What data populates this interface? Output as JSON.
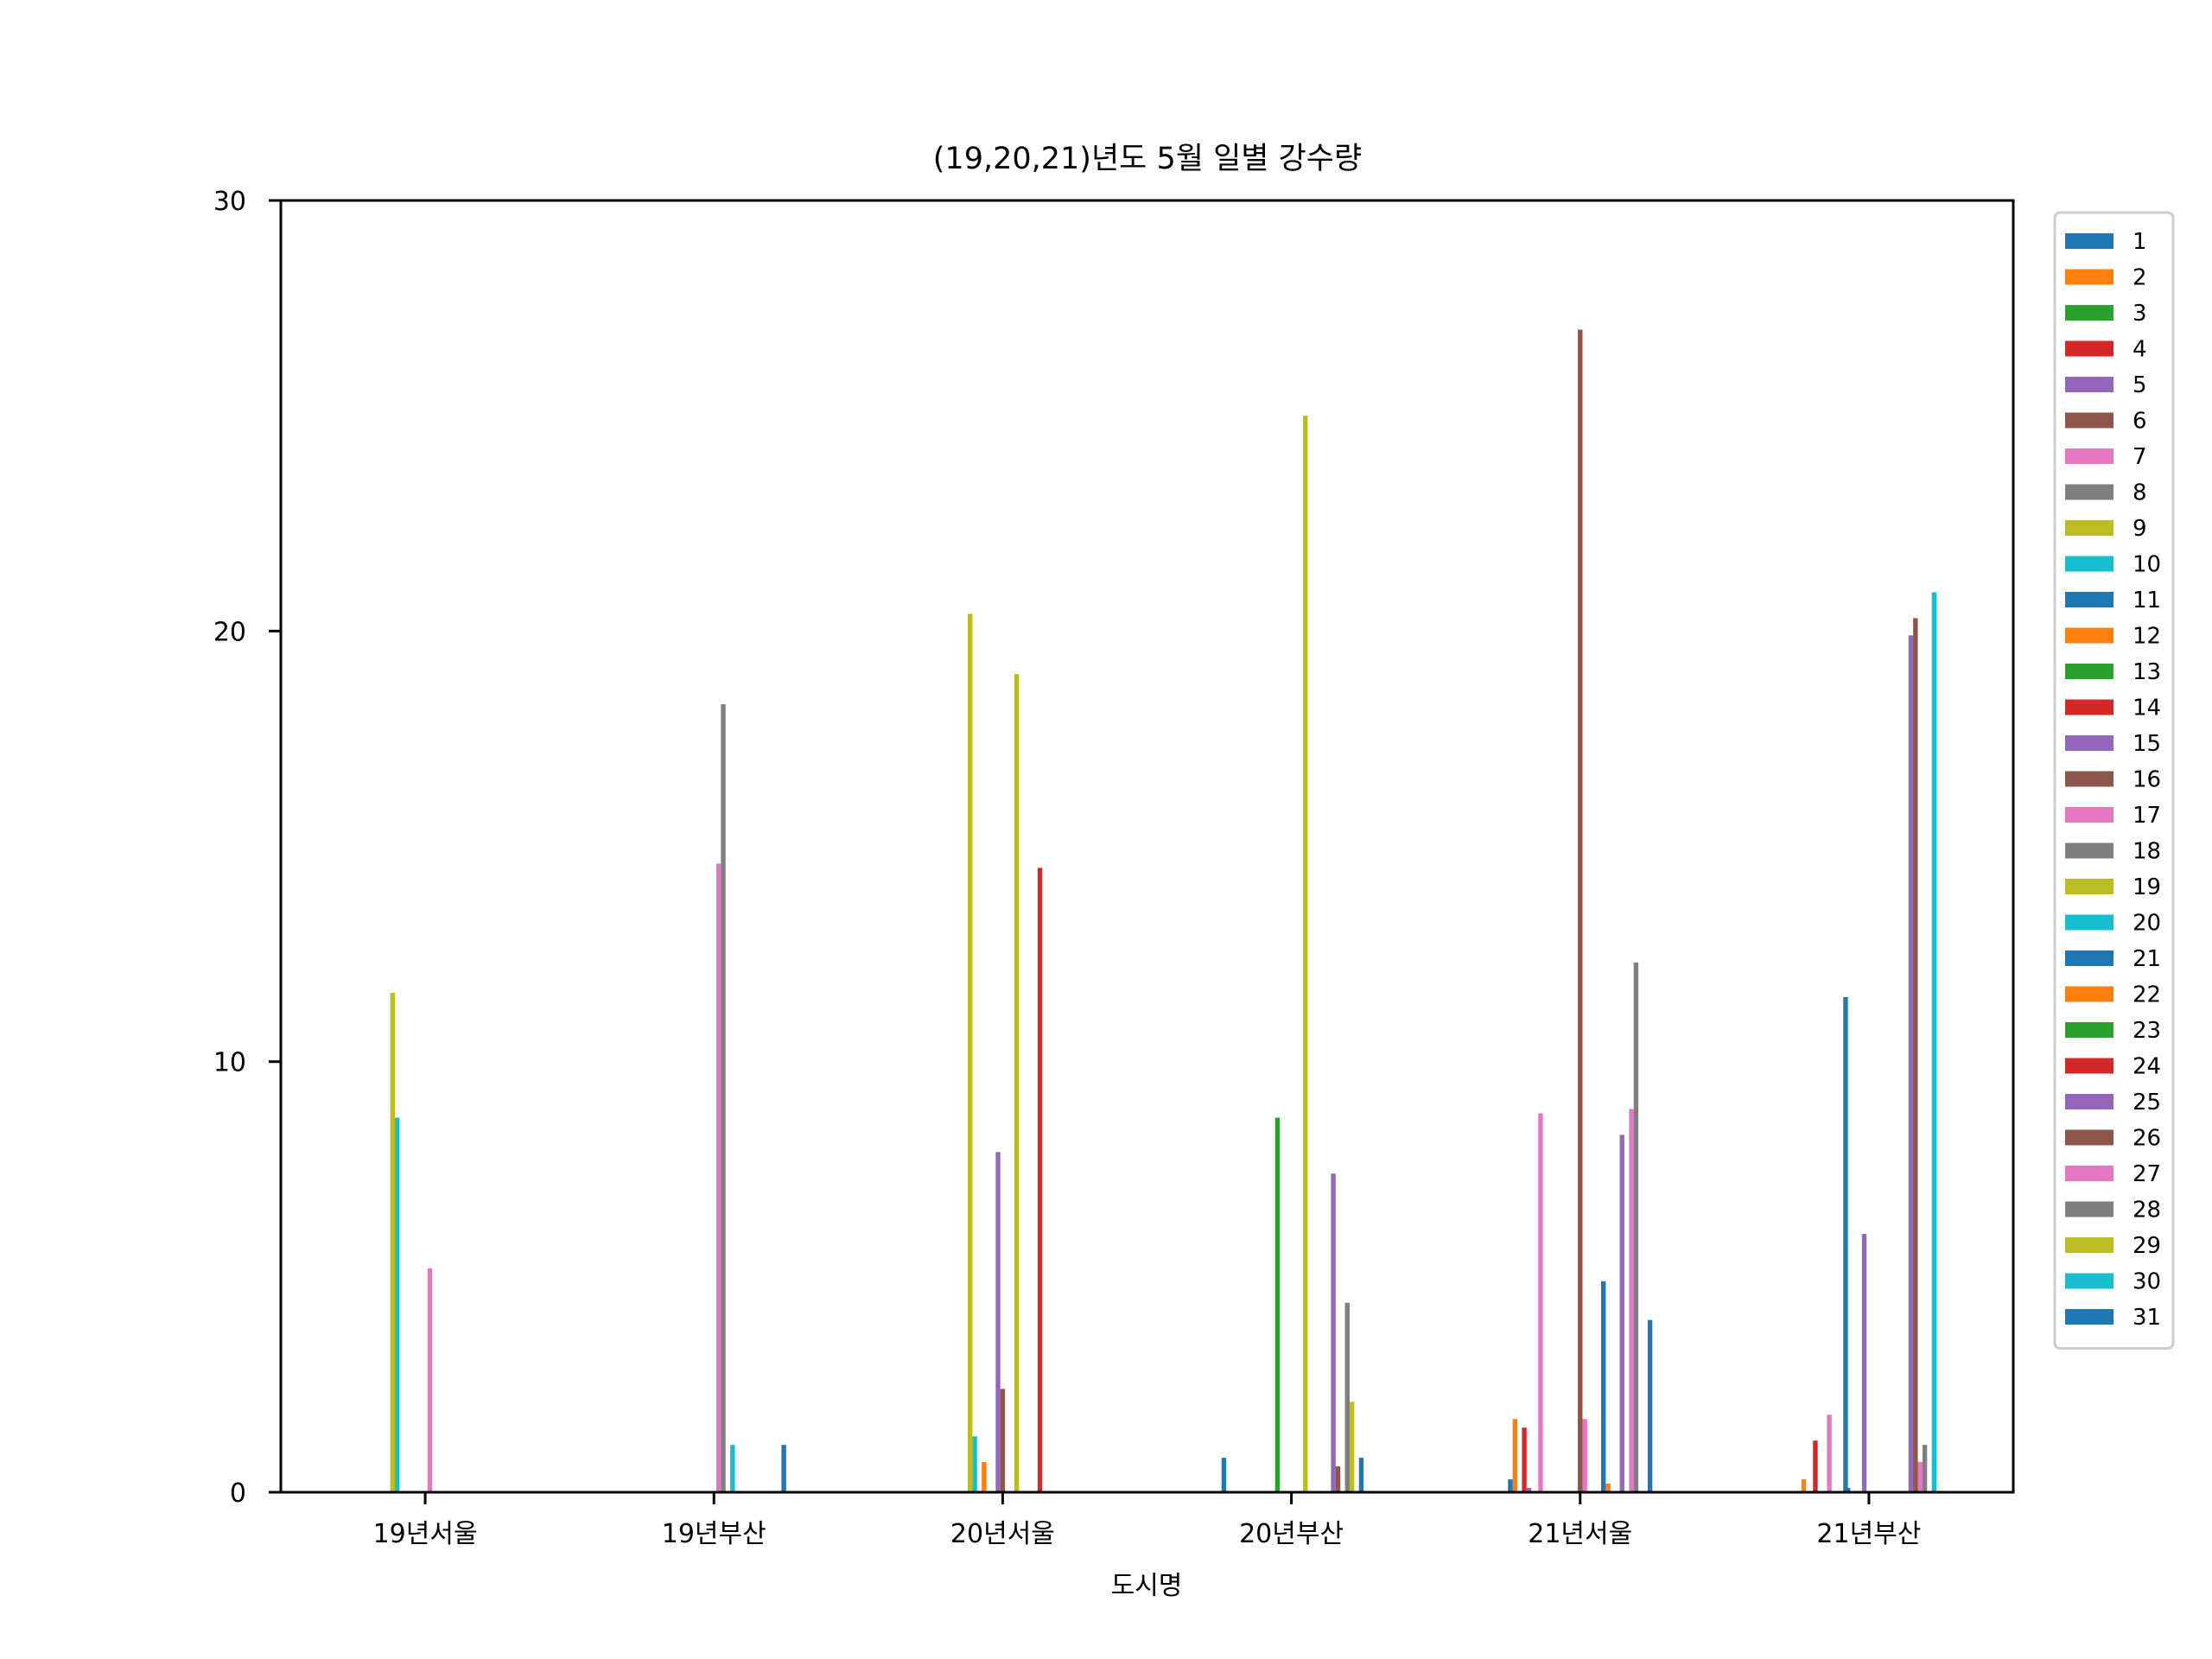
{
  "chart_data": {
    "type": "bar",
    "title": "(19,20,21)년도 5월 일별 강수량",
    "xlabel": "도시명",
    "ylabel": "",
    "ylim": [
      0,
      30
    ],
    "yticks": [
      0,
      10,
      20,
      30
    ],
    "categories": [
      "19년서울",
      "19년부산",
      "20년서울",
      "20년부산",
      "21년서울",
      "21년부산"
    ],
    "legend_position": "outside-right",
    "grid": false,
    "palette": [
      "#1f77b4",
      "#ff7f0e",
      "#2ca02c",
      "#d62728",
      "#9467bd",
      "#8c564b",
      "#e377c2",
      "#7f7f7f",
      "#bcbd22",
      "#17becf"
    ],
    "series": [
      {
        "name": "1",
        "values": [
          0,
          0,
          0,
          0,
          0.3,
          0
        ]
      },
      {
        "name": "2",
        "values": [
          0,
          0,
          0,
          0,
          1.7,
          0.3
        ]
      },
      {
        "name": "3",
        "values": [
          0,
          0,
          0,
          0,
          0,
          0
        ]
      },
      {
        "name": "4",
        "values": [
          0,
          0,
          0,
          0,
          1.5,
          0
        ]
      },
      {
        "name": "5",
        "values": [
          0,
          0,
          0,
          0,
          0.1,
          0
        ]
      },
      {
        "name": "6",
        "values": [
          0,
          0,
          0,
          0,
          0,
          0
        ]
      },
      {
        "name": "7",
        "values": [
          0,
          0,
          0,
          0,
          0,
          0
        ]
      },
      {
        "name": "8",
        "values": [
          0,
          0,
          0,
          0,
          0,
          0
        ]
      },
      {
        "name": "9",
        "values": [
          11.6,
          0,
          20.4,
          0,
          0,
          0
        ]
      },
      {
        "name": "10",
        "values": [
          8.7,
          0,
          1.3,
          0,
          0,
          0
        ]
      },
      {
        "name": "11",
        "values": [
          0,
          0,
          0,
          0,
          0,
          11.5
        ]
      },
      {
        "name": "12",
        "values": [
          0,
          0,
          0.7,
          0,
          0,
          0
        ]
      },
      {
        "name": "13",
        "values": [
          0,
          0,
          0,
          8.7,
          0,
          0
        ]
      },
      {
        "name": "14",
        "values": [
          0,
          0,
          0,
          0,
          0,
          0
        ]
      },
      {
        "name": "15",
        "values": [
          0,
          0,
          7.9,
          0,
          0,
          6.0
        ]
      },
      {
        "name": "16",
        "values": [
          0,
          0,
          2.4,
          0,
          27.0,
          0
        ]
      },
      {
        "name": "17",
        "values": [
          5.2,
          14.6,
          0,
          0,
          1.7,
          0
        ]
      },
      {
        "name": "18",
        "values": [
          0,
          18.3,
          0,
          0,
          0,
          0
        ]
      },
      {
        "name": "19",
        "values": [
          0,
          0,
          19.0,
          25.0,
          0,
          0
        ]
      },
      {
        "name": "20",
        "values": [
          0,
          1.1,
          0,
          0,
          0,
          0
        ]
      },
      {
        "name": "21",
        "values": [
          0,
          0,
          0,
          0,
          4.9,
          0
        ]
      },
      {
        "name": "22",
        "values": [
          0,
          0,
          0,
          0,
          0.2,
          0
        ]
      },
      {
        "name": "23",
        "values": [
          0,
          0,
          0,
          0,
          0,
          0
        ]
      },
      {
        "name": "24",
        "values": [
          0,
          0,
          14.5,
          0,
          0,
          0
        ]
      },
      {
        "name": "25",
        "values": [
          0,
          0,
          0,
          7.4,
          8.3,
          19.9
        ]
      },
      {
        "name": "26",
        "values": [
          0,
          0,
          0,
          0.6,
          0,
          20.3
        ]
      },
      {
        "name": "27",
        "values": [
          0,
          0,
          0,
          0,
          8.9,
          0.7
        ]
      },
      {
        "name": "28",
        "values": [
          0,
          0,
          0,
          4.4,
          12.3,
          1.1
        ]
      },
      {
        "name": "29",
        "values": [
          0,
          0,
          0,
          2.1,
          0,
          0
        ]
      },
      {
        "name": "30",
        "values": [
          0,
          0,
          0,
          0,
          0,
          20.9
        ]
      },
      {
        "name": "31",
        "values": [
          0,
          1.1,
          0,
          0.8,
          4.0,
          0
        ]
      }
    ],
    "extra_marks": [
      {
        "category": 4,
        "series_index": 6,
        "value": 8.8
      },
      {
        "category": 5,
        "series_index": 3,
        "value": 1.2
      },
      {
        "category": 5,
        "series_index": 6,
        "value": 1.8
      },
      {
        "category": 5,
        "series_index": 10,
        "value": 0.1
      },
      {
        "category": 3,
        "series_index": 0,
        "value": 0.8
      }
    ]
  }
}
